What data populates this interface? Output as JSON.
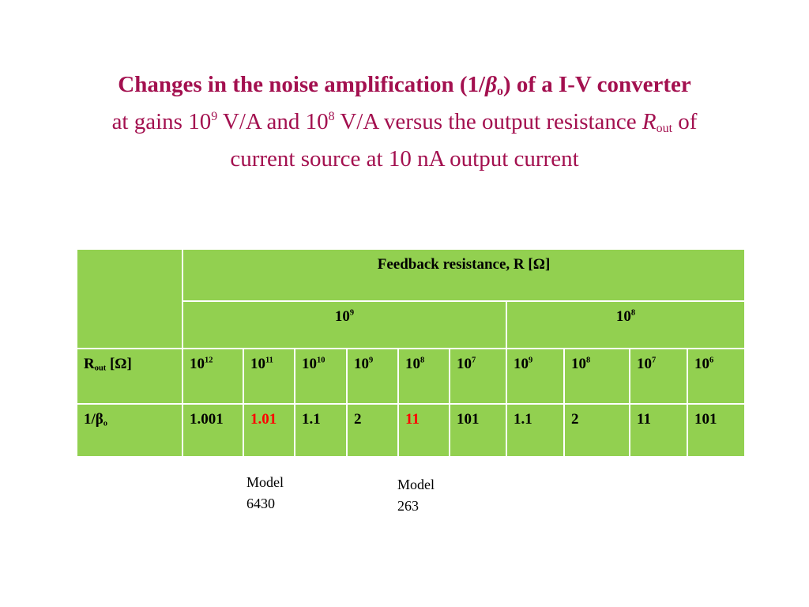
{
  "title": {
    "line1": [
      "Changes in the noise amplification (1/",
      "β",
      "o",
      ") of a I-V converter"
    ],
    "line2": [
      "at gains 10",
      "9",
      " V/A and 10",
      "8",
      " V/A versus the output resistance ",
      "R",
      "out",
      " of"
    ],
    "line3": "current source at 10 nA output current"
  },
  "table": {
    "header": "Feedback resistance, R [Ω]",
    "groups": [
      [
        "10",
        "9"
      ],
      [
        "10",
        "8"
      ]
    ],
    "row_labels": [
      [
        "R",
        "out",
        " [Ω]"
      ],
      [
        "1/",
        "β",
        "o"
      ]
    ],
    "rout": [
      [
        "10",
        "12"
      ],
      [
        "10",
        "11"
      ],
      [
        "10",
        "10"
      ],
      [
        "10",
        "9"
      ],
      [
        "10",
        "8"
      ],
      [
        "10",
        "7"
      ],
      [
        "10",
        "9"
      ],
      [
        "10",
        "8"
      ],
      [
        "10",
        "7"
      ],
      [
        "10",
        "6"
      ]
    ],
    "values": [
      1.001,
      1.01,
      1.1,
      2,
      11,
      101,
      1.1,
      2,
      11,
      101
    ],
    "highlight": [
      1,
      4
    ],
    "highlight_color": "#ff0000"
  },
  "notes": [
    [
      "Model",
      "6430"
    ],
    [
      "Model",
      "263"
    ]
  ]
}
